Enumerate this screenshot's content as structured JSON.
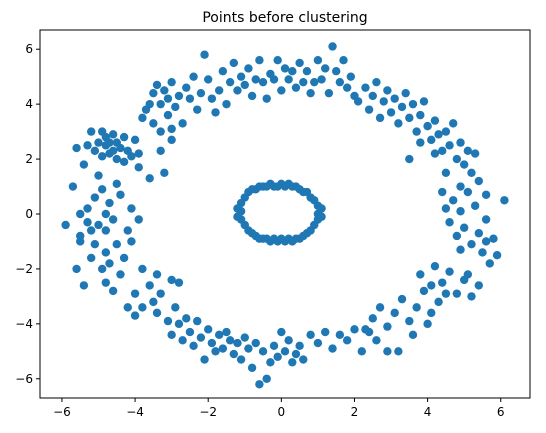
{
  "chart_data": {
    "type": "scatter",
    "title": "Points before clustering",
    "xlabel": "",
    "ylabel": "",
    "xlim": [
      -6.6,
      6.8
    ],
    "ylim": [
      -6.7,
      6.7
    ],
    "xticks": [
      -6,
      -4,
      -2,
      0,
      2,
      4,
      6
    ],
    "yticks": [
      -6,
      -4,
      -2,
      0,
      2,
      4,
      6
    ],
    "grid": false,
    "legend": "none",
    "marker_color": "#1f77b4",
    "series": [
      {
        "points": [
          [
            -5.9,
            -0.4
          ],
          [
            -5.7,
            1.0
          ],
          [
            -5.6,
            -2.0
          ],
          [
            -5.5,
            -0.8
          ],
          [
            -5.5,
            -1.0
          ],
          [
            -5.4,
            -2.6
          ],
          [
            -5.5,
            0.0
          ],
          [
            -5.3,
            0.2
          ],
          [
            -5.3,
            -0.3
          ],
          [
            -5.2,
            -0.6
          ],
          [
            -5.2,
            -1.6
          ],
          [
            -5.1,
            0.6
          ],
          [
            -5.1,
            -1.1
          ],
          [
            -5.0,
            1.4
          ],
          [
            -5.0,
            -0.4
          ],
          [
            -4.9,
            0.9
          ],
          [
            -4.9,
            -2.0
          ],
          [
            -4.8,
            0.0
          ],
          [
            -4.8,
            -0.6
          ],
          [
            -4.8,
            -1.4
          ],
          [
            -4.8,
            -2.5
          ],
          [
            -4.7,
            0.4
          ],
          [
            -4.7,
            -1.8
          ],
          [
            -4.6,
            -0.2
          ],
          [
            -4.6,
            -2.8
          ],
          [
            -4.5,
            1.1
          ],
          [
            -4.5,
            -1.1
          ],
          [
            -4.4,
            0.7
          ],
          [
            -4.4,
            -2.2
          ],
          [
            -4.3,
            -1.6
          ],
          [
            -4.2,
            -0.6
          ],
          [
            -4.1,
            0.2
          ],
          [
            -4.1,
            -1.0
          ],
          [
            -4.0,
            -2.9
          ],
          [
            -3.9,
            -0.2
          ],
          [
            -3.8,
            -2.0
          ],
          [
            -5.6,
            2.4
          ],
          [
            -5.4,
            1.8
          ],
          [
            -5.3,
            2.5
          ],
          [
            -5.2,
            3.0
          ],
          [
            -5.1,
            2.3
          ],
          [
            -5.0,
            2.6
          ],
          [
            -4.9,
            2.1
          ],
          [
            -4.9,
            3.0
          ],
          [
            -4.8,
            2.5
          ],
          [
            -4.8,
            2.8
          ],
          [
            -4.7,
            2.2
          ],
          [
            -4.7,
            2.6
          ],
          [
            -4.6,
            2.9
          ],
          [
            -4.6,
            2.3
          ],
          [
            -4.5,
            2.6
          ],
          [
            -4.5,
            2.0
          ],
          [
            -4.4,
            2.4
          ],
          [
            -4.3,
            2.8
          ],
          [
            -4.3,
            1.9
          ],
          [
            -4.2,
            2.3
          ],
          [
            -4.1,
            2.1
          ],
          [
            -4.0,
            2.7
          ],
          [
            -3.9,
            2.2
          ],
          [
            -3.8,
            3.5
          ],
          [
            -3.7,
            3.8
          ],
          [
            -3.6,
            4.0
          ],
          [
            -3.5,
            3.3
          ],
          [
            -3.5,
            4.4
          ],
          [
            -3.4,
            4.7
          ],
          [
            -3.3,
            3.0
          ],
          [
            -3.3,
            4.0
          ],
          [
            -3.2,
            4.5
          ],
          [
            -3.1,
            3.6
          ],
          [
            -3.1,
            4.2
          ],
          [
            -3.0,
            3.1
          ],
          [
            -3.0,
            4.8
          ],
          [
            -2.9,
            3.9
          ],
          [
            -2.8,
            4.3
          ],
          [
            -2.7,
            3.3
          ],
          [
            -2.6,
            4.6
          ],
          [
            -2.5,
            4.2
          ],
          [
            -2.4,
            5.0
          ],
          [
            -2.3,
            3.8
          ],
          [
            -2.2,
            4.4
          ],
          [
            -2.1,
            5.8
          ],
          [
            -2.0,
            4.9
          ],
          [
            -1.9,
            4.2
          ],
          [
            -1.8,
            3.7
          ],
          [
            -1.7,
            4.5
          ],
          [
            -1.6,
            5.2
          ],
          [
            -1.5,
            4.0
          ],
          [
            -1.4,
            4.8
          ],
          [
            -1.3,
            5.5
          ],
          [
            -1.2,
            4.5
          ],
          [
            -1.1,
            5.0
          ],
          [
            -1.0,
            4.7
          ],
          [
            -0.9,
            5.3
          ],
          [
            -0.8,
            4.3
          ],
          [
            -0.7,
            4.9
          ],
          [
            -0.6,
            5.6
          ],
          [
            -0.5,
            4.8
          ],
          [
            -0.4,
            4.2
          ],
          [
            -0.3,
            5.1
          ],
          [
            -0.2,
            4.9
          ],
          [
            -0.1,
            5.6
          ],
          [
            0.0,
            4.5
          ],
          [
            0.1,
            5.3
          ],
          [
            0.2,
            4.9
          ],
          [
            0.3,
            5.2
          ],
          [
            0.4,
            4.6
          ],
          [
            0.5,
            5.5
          ],
          [
            0.6,
            4.8
          ],
          [
            0.7,
            5.2
          ],
          [
            0.8,
            4.4
          ],
          [
            0.9,
            4.8
          ],
          [
            1.0,
            5.6
          ],
          [
            1.1,
            4.9
          ],
          [
            1.2,
            5.3
          ],
          [
            1.3,
            4.4
          ],
          [
            1.4,
            6.1
          ],
          [
            1.5,
            5.2
          ],
          [
            1.6,
            4.8
          ],
          [
            1.7,
            5.6
          ],
          [
            1.8,
            4.6
          ],
          [
            1.9,
            5.0
          ],
          [
            2.0,
            4.3
          ],
          [
            -3.9,
            1.7
          ],
          [
            -3.6,
            1.3
          ],
          [
            -3.3,
            2.3
          ],
          [
            -3.2,
            1.5
          ],
          [
            -3.0,
            2.7
          ],
          [
            -3.6,
            -2.6
          ],
          [
            -3.5,
            -3.2
          ],
          [
            -3.4,
            -3.6
          ],
          [
            -3.3,
            -2.9
          ],
          [
            -3.1,
            -3.9
          ],
          [
            -3.0,
            -4.4
          ],
          [
            -2.9,
            -3.4
          ],
          [
            -2.8,
            -4.0
          ],
          [
            -2.7,
            -4.6
          ],
          [
            -2.6,
            -3.8
          ],
          [
            -2.5,
            -4.3
          ],
          [
            -2.4,
            -4.8
          ],
          [
            -2.3,
            -3.9
          ],
          [
            -2.2,
            -4.5
          ],
          [
            -2.1,
            -5.3
          ],
          [
            -2.0,
            -4.2
          ],
          [
            -1.9,
            -4.7
          ],
          [
            -1.8,
            -5.0
          ],
          [
            -1.7,
            -4.4
          ],
          [
            -1.6,
            -4.9
          ],
          [
            -1.5,
            -4.3
          ],
          [
            -1.4,
            -4.6
          ],
          [
            -1.3,
            -5.1
          ],
          [
            -1.2,
            -4.7
          ],
          [
            -1.1,
            -5.3
          ],
          [
            -1.0,
            -4.5
          ],
          [
            -0.9,
            -4.9
          ],
          [
            -0.8,
            -5.6
          ],
          [
            -0.7,
            -4.7
          ],
          [
            -0.6,
            -6.2
          ],
          [
            -0.5,
            -5.0
          ],
          [
            -0.4,
            -6.0
          ],
          [
            -0.3,
            -5.4
          ],
          [
            -0.2,
            -4.8
          ],
          [
            -0.1,
            -5.2
          ],
          [
            0.0,
            -4.3
          ],
          [
            0.1,
            -5.0
          ],
          [
            0.2,
            -4.6
          ],
          [
            0.3,
            -5.4
          ],
          [
            0.4,
            -5.1
          ],
          [
            0.5,
            -4.8
          ],
          [
            0.6,
            -5.3
          ],
          [
            0.8,
            -4.4
          ],
          [
            1.0,
            -4.7
          ],
          [
            1.2,
            -4.3
          ],
          [
            1.4,
            -4.9
          ],
          [
            1.6,
            -4.4
          ],
          [
            1.8,
            -4.6
          ],
          [
            2.0,
            -4.2
          ],
          [
            2.2,
            -5.0
          ],
          [
            2.4,
            -4.3
          ],
          [
            2.6,
            -4.6
          ],
          [
            -3.0,
            -2.4
          ],
          [
            -2.8,
            -2.5
          ],
          [
            -3.4,
            -2.2
          ],
          [
            -3.8,
            -3.4
          ],
          [
            -4.2,
            -3.4
          ],
          [
            -4.0,
            -3.7
          ],
          [
            2.1,
            4.1
          ],
          [
            2.3,
            4.6
          ],
          [
            2.4,
            3.8
          ],
          [
            2.5,
            4.3
          ],
          [
            2.6,
            4.8
          ],
          [
            2.7,
            3.5
          ],
          [
            2.8,
            4.1
          ],
          [
            2.9,
            4.5
          ],
          [
            3.0,
            3.7
          ],
          [
            3.1,
            4.2
          ],
          [
            3.2,
            3.3
          ],
          [
            3.3,
            3.9
          ],
          [
            3.4,
            4.4
          ],
          [
            3.5,
            3.5
          ],
          [
            3.6,
            4.0
          ],
          [
            3.7,
            3.0
          ],
          [
            3.8,
            3.6
          ],
          [
            3.9,
            4.1
          ],
          [
            4.0,
            3.2
          ],
          [
            4.1,
            2.7
          ],
          [
            4.2,
            3.4
          ],
          [
            4.3,
            2.9
          ],
          [
            4.4,
            2.3
          ],
          [
            4.5,
            3.0
          ],
          [
            4.6,
            2.5
          ],
          [
            4.7,
            3.3
          ],
          [
            4.8,
            2.0
          ],
          [
            4.9,
            2.6
          ],
          [
            5.0,
            1.8
          ],
          [
            5.1,
            2.3
          ],
          [
            5.2,
            1.5
          ],
          [
            5.3,
            2.2
          ],
          [
            5.4,
            1.2
          ],
          [
            3.5,
            2.0
          ],
          [
            3.8,
            2.6
          ],
          [
            4.2,
            2.2
          ],
          [
            4.9,
            1.0
          ],
          [
            5.6,
            0.7
          ],
          [
            6.1,
            0.5
          ],
          [
            4.4,
            0.8
          ],
          [
            4.5,
            0.2
          ],
          [
            4.6,
            -0.3
          ],
          [
            4.7,
            0.5
          ],
          [
            4.8,
            -0.8
          ],
          [
            4.9,
            0.1
          ],
          [
            5.0,
            -0.5
          ],
          [
            5.1,
            0.8
          ],
          [
            5.2,
            -1.1
          ],
          [
            5.3,
            0.3
          ],
          [
            5.4,
            -0.7
          ],
          [
            5.5,
            -1.4
          ],
          [
            5.6,
            -0.2
          ],
          [
            5.7,
            -1.8
          ],
          [
            5.8,
            -0.9
          ],
          [
            5.9,
            -1.5
          ],
          [
            4.5,
            1.5
          ],
          [
            4.9,
            -1.3
          ],
          [
            5.1,
            -2.2
          ],
          [
            5.4,
            -2.6
          ],
          [
            5.6,
            -1.0
          ],
          [
            4.2,
            -1.9
          ],
          [
            4.4,
            -2.5
          ],
          [
            4.6,
            -2.1
          ],
          [
            4.8,
            -2.9
          ],
          [
            5.0,
            -2.4
          ],
          [
            4.3,
            -3.2
          ],
          [
            4.1,
            -3.6
          ],
          [
            3.9,
            -2.8
          ],
          [
            3.7,
            -3.4
          ],
          [
            3.5,
            -3.9
          ],
          [
            3.3,
            -3.1
          ],
          [
            3.1,
            -3.6
          ],
          [
            2.9,
            -4.1
          ],
          [
            2.7,
            -3.4
          ],
          [
            2.5,
            -3.8
          ],
          [
            2.3,
            -4.2
          ],
          [
            4.0,
            -4.0
          ],
          [
            3.6,
            -4.4
          ],
          [
            3.2,
            -5.0
          ],
          [
            2.9,
            -5.0
          ],
          [
            3.8,
            -2.2
          ],
          [
            4.5,
            -2.9
          ],
          [
            5.2,
            -3.0
          ],
          [
            4.1,
            -2.6
          ],
          [
            -1.1,
            0.4
          ],
          [
            -1.1,
            0.1
          ],
          [
            -1.1,
            -0.2
          ],
          [
            -1.0,
            0.6
          ],
          [
            -1.0,
            -0.4
          ],
          [
            -0.9,
            0.8
          ],
          [
            -0.9,
            -0.6
          ],
          [
            -0.8,
            0.9
          ],
          [
            -0.8,
            -0.7
          ],
          [
            -0.7,
            0.9
          ],
          [
            -0.7,
            -0.8
          ],
          [
            -0.6,
            1.0
          ],
          [
            -0.6,
            -0.9
          ],
          [
            -0.5,
            1.0
          ],
          [
            -0.5,
            -0.9
          ],
          [
            -0.4,
            1.0
          ],
          [
            -0.4,
            -0.9
          ],
          [
            -0.3,
            1.1
          ],
          [
            -0.3,
            -1.0
          ],
          [
            -0.2,
            1.0
          ],
          [
            -0.2,
            -0.9
          ],
          [
            -0.1,
            1.0
          ],
          [
            -0.1,
            -1.0
          ],
          [
            0.0,
            1.1
          ],
          [
            0.0,
            -0.9
          ],
          [
            0.1,
            1.0
          ],
          [
            0.1,
            -1.0
          ],
          [
            0.2,
            1.1
          ],
          [
            0.2,
            -0.9
          ],
          [
            0.3,
            1.0
          ],
          [
            0.3,
            -1.0
          ],
          [
            0.4,
            1.0
          ],
          [
            0.4,
            -0.9
          ],
          [
            0.5,
            0.9
          ],
          [
            0.5,
            -0.9
          ],
          [
            0.6,
            0.8
          ],
          [
            0.6,
            -0.8
          ],
          [
            0.7,
            0.8
          ],
          [
            0.7,
            -0.7
          ],
          [
            0.8,
            0.6
          ],
          [
            0.8,
            -0.6
          ],
          [
            0.9,
            0.5
          ],
          [
            0.9,
            -0.4
          ],
          [
            1.0,
            0.3
          ],
          [
            1.0,
            -0.2
          ],
          [
            1.0,
            0.0
          ],
          [
            1.1,
            0.2
          ],
          [
            1.1,
            -0.1
          ],
          [
            -1.2,
            0.2
          ],
          [
            -1.2,
            -0.1
          ]
        ]
      }
    ]
  }
}
